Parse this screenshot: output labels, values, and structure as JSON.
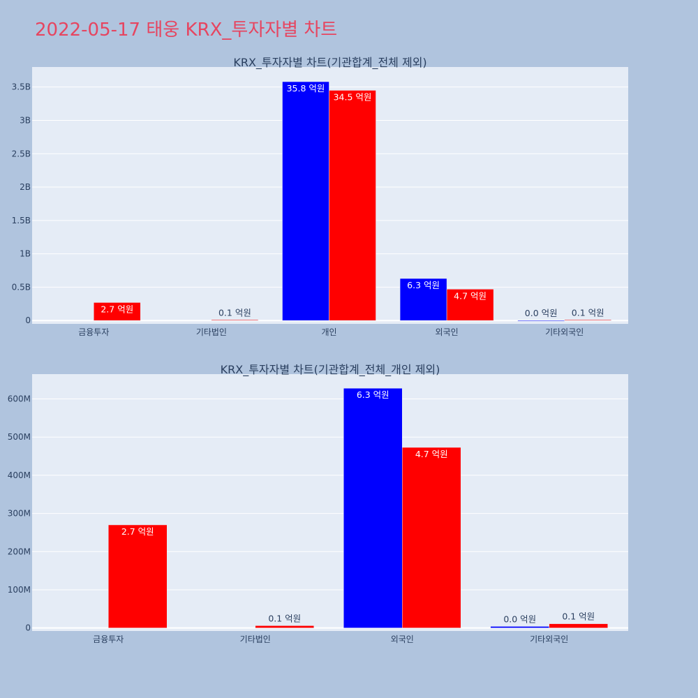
{
  "page": {
    "title": "2022-05-17 태웅 KRX_투자자별 차트"
  },
  "colors": {
    "background": "#b0c4de",
    "plot_bg": "#e5ecf6",
    "title": "#e64560",
    "series_blue": "#0000ff",
    "series_red": "#ff0000"
  },
  "chart_data": [
    {
      "type": "bar",
      "title": "KRX_투자자별 차트(기관합계_전체 제외)",
      "categories": [
        "금융투자",
        "기타법인",
        "개인",
        "외국인",
        "기타외국인"
      ],
      "ylim": [
        -50000000,
        3800000000
      ],
      "yticks": [
        0,
        500000000,
        1000000000,
        1500000000,
        2000000000,
        2500000000,
        3000000000,
        3500000000
      ],
      "ytick_labels": [
        "0",
        "0.5B",
        "1B",
        "1.5B",
        "2B",
        "2.5B",
        "3B",
        "3.5B"
      ],
      "grid": true,
      "series": [
        {
          "color": "#0000ff",
          "values": [
            0,
            0,
            3580000000,
            630000000,
            1000000
          ],
          "labels": [
            "",
            "",
            "35.8 억원",
            "6.3 억원",
            "0.0 억원"
          ]
        },
        {
          "color": "#ff0000",
          "values": [
            270000000,
            10000000,
            3450000000,
            470000000,
            10000000
          ],
          "labels": [
            "2.7 억원",
            "0.1 억원",
            "34.5 억원",
            "4.7 억원",
            "0.1 억원"
          ]
        }
      ]
    },
    {
      "type": "bar",
      "title": "KRX_투자자별 차트(기관합계_전체_개인 제외)",
      "categories": [
        "금융투자",
        "기타법인",
        "외국인",
        "기타외국인"
      ],
      "ylim": [
        -8000000,
        665000000
      ],
      "yticks": [
        0,
        100000000,
        200000000,
        300000000,
        400000000,
        500000000,
        600000000
      ],
      "ytick_labels": [
        "0",
        "100M",
        "200M",
        "300M",
        "400M",
        "500M",
        "600M"
      ],
      "grid": true,
      "series": [
        {
          "color": "#0000ff",
          "values": [
            0,
            0,
            628000000,
            4000000
          ],
          "labels": [
            "",
            "",
            "6.3 억원",
            "0.0 억원"
          ]
        },
        {
          "color": "#ff0000",
          "values": [
            270000000,
            6000000,
            473000000,
            11000000
          ],
          "labels": [
            "2.7 억원",
            "0.1 억원",
            "4.7 억원",
            "0.1 억원"
          ]
        }
      ]
    }
  ]
}
